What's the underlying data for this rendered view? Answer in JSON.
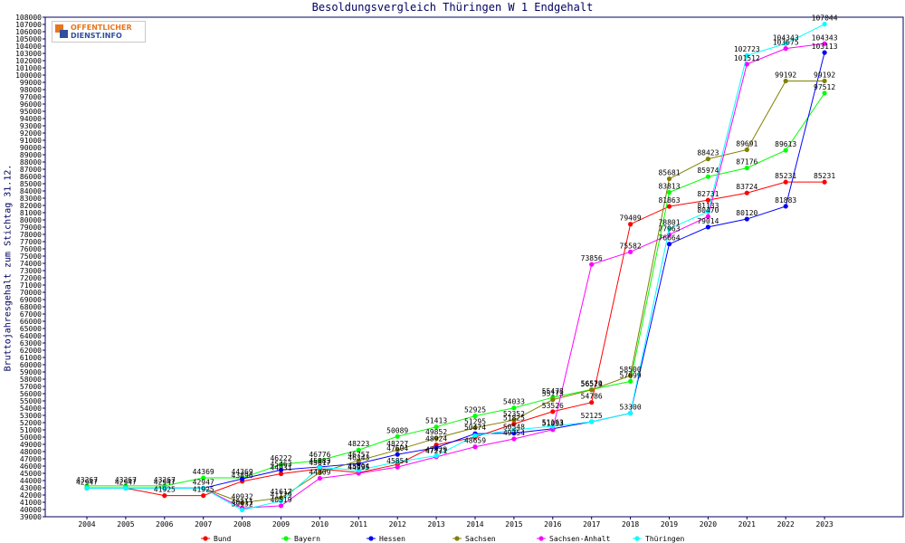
{
  "chart_data": {
    "type": "line",
    "title": "Besoldungsvergleich Thüringen W 1 Endgehalt",
    "ylabel": "Bruttojahresgehalt zum Stichtag 31.12.",
    "xlabel": "",
    "x": [
      "2004",
      "2005",
      "2006",
      "2007",
      "2008",
      "2009",
      "2010",
      "2011",
      "2012",
      "2013",
      "2014",
      "2015",
      "2016",
      "2017",
      "2018",
      "2019",
      "2020",
      "2021",
      "2022",
      "2023"
    ],
    "ylim": [
      39000,
      108000
    ],
    "ytick_step": 1000,
    "grid": false,
    "legend_position": "bottom",
    "series": [
      {
        "name": "Bund",
        "color": "#ff0000",
        "values": [
          42947,
          42947,
          41925,
          41925,
          43896,
          44931,
          45617,
          45094,
          46227,
          48924,
          49984,
          51825,
          53526,
          54786,
          79409,
          81863,
          82731,
          83724,
          85231,
          85231
        ]
      },
      {
        "name": "Bayern",
        "color": "#00ff00",
        "values": [
          43267,
          43267,
          43267,
          44369,
          44369,
          46222,
          46776,
          48223,
          50089,
          51413,
          52925,
          54033,
          55478,
          56579,
          57699,
          83813,
          85974,
          87176,
          89613,
          97512
        ]
      },
      {
        "name": "Hessen",
        "color": "#0000ff",
        "values": [
          42947,
          42947,
          42947,
          42947,
          44231,
          45463,
          45883,
          46343,
          47604,
          48553,
          50474,
          50548,
          51163,
          52125,
          53300,
          76664,
          79014,
          80120,
          81883,
          103113
        ]
      },
      {
        "name": "Sachsen",
        "color": "#808000",
        "values": [
          42947,
          42947,
          42947,
          42947,
          40932,
          41617,
          45093,
          46757,
          48227,
          49852,
          51295,
          52352,
          55173,
          56524,
          58500,
          85681,
          88423,
          89691,
          99192,
          99192
        ]
      },
      {
        "name": "Sachsen-Anhalt",
        "color": "#ff00ff",
        "values": [
          42947,
          42947,
          42947,
          42947,
          40211,
          40519,
          44309,
          44995,
          45854,
          47271,
          48659,
          49754,
          51033,
          73856,
          75582,
          77963,
          80470,
          101512,
          103675,
          104343
        ]
      },
      {
        "name": "Thüringen",
        "color": "#00ffff",
        "values": [
          42947,
          42947,
          42947,
          42947,
          39932,
          41179,
          45805,
          45434,
          46584,
          47429,
          50205,
          50994,
          51495,
          52125,
          53300,
          78801,
          81133,
          102723,
          104343,
          107044
        ]
      }
    ],
    "data_labels": [
      {
        "x": "2004",
        "y": 42947,
        "label": "42947"
      },
      {
        "x": "2004",
        "y": 43267,
        "label": "43267"
      },
      {
        "x": "2005",
        "y": 42947,
        "label": "42947"
      },
      {
        "x": "2005",
        "y": 43267,
        "label": "43267"
      },
      {
        "x": "2006",
        "y": 42947,
        "label": "42947"
      },
      {
        "x": "2006",
        "y": 43267,
        "label": "43267"
      },
      {
        "x": "2006",
        "y": 41925,
        "label": "41925"
      },
      {
        "x": "2007",
        "y": 44369,
        "label": "44369"
      },
      {
        "x": "2007",
        "y": 42947,
        "label": "42947"
      },
      {
        "x": "2007",
        "y": 41925,
        "label": "41925"
      },
      {
        "x": "2008",
        "y": 44369,
        "label": "44369"
      },
      {
        "x": "2008",
        "y": 43896,
        "label": "43896"
      },
      {
        "x": "2008",
        "y": 40932,
        "label": "40932"
      },
      {
        "x": "2008",
        "y": 40211,
        "label": "40211"
      },
      {
        "x": "2008",
        "y": 39932,
        "label": "39932"
      },
      {
        "x": "2009",
        "y": 46222,
        "label": "46222"
      },
      {
        "x": "2009",
        "y": 45463,
        "label": "45463"
      },
      {
        "x": "2009",
        "y": 44931,
        "label": "44931"
      },
      {
        "x": "2009",
        "y": 41617,
        "label": "41617"
      },
      {
        "x": "2009",
        "y": 41179,
        "label": "41179"
      },
      {
        "x": "2009",
        "y": 40519,
        "label": "40519"
      },
      {
        "x": "2010",
        "y": 46776,
        "label": "46776"
      },
      {
        "x": "2010",
        "y": 45883,
        "label": "45883"
      },
      {
        "x": "2010",
        "y": 45617,
        "label": "45617"
      },
      {
        "x": "2010",
        "y": 44309,
        "label": "44309"
      },
      {
        "x": "2011",
        "y": 48223,
        "label": "48223"
      },
      {
        "x": "2011",
        "y": 46757,
        "label": "46757"
      },
      {
        "x": "2011",
        "y": 46343,
        "label": "46343"
      },
      {
        "x": "2011",
        "y": 45094,
        "label": "45094"
      },
      {
        "x": "2011",
        "y": 44995,
        "label": "44995"
      },
      {
        "x": "2012",
        "y": 50089,
        "label": "50089"
      },
      {
        "x": "2012",
        "y": 48227,
        "label": "48227"
      },
      {
        "x": "2012",
        "y": 47604,
        "label": "47604"
      },
      {
        "x": "2012",
        "y": 45854,
        "label": "45854"
      },
      {
        "x": "2013",
        "y": 51413,
        "label": "51413"
      },
      {
        "x": "2013",
        "y": 49852,
        "label": "49852"
      },
      {
        "x": "2013",
        "y": 48924,
        "label": "48924"
      },
      {
        "x": "2013",
        "y": 47429,
        "label": "47429"
      },
      {
        "x": "2013",
        "y": 47271,
        "label": "47271"
      },
      {
        "x": "2014",
        "y": 52925,
        "label": "52925"
      },
      {
        "x": "2014",
        "y": 51295,
        "label": "51295"
      },
      {
        "x": "2014",
        "y": 50474,
        "label": "50474"
      },
      {
        "x": "2014",
        "y": 48659,
        "label": "48659"
      },
      {
        "x": "2015",
        "y": 54033,
        "label": "54033"
      },
      {
        "x": "2015",
        "y": 52352,
        "label": "52352"
      },
      {
        "x": "2015",
        "y": 51825,
        "label": "51825"
      },
      {
        "x": "2015",
        "y": 50548,
        "label": "50548"
      },
      {
        "x": "2015",
        "y": 49754,
        "label": "49754"
      },
      {
        "x": "2016",
        "y": 55478,
        "label": "55478"
      },
      {
        "x": "2016",
        "y": 55173,
        "label": "55173"
      },
      {
        "x": "2016",
        "y": 53526,
        "label": "53526"
      },
      {
        "x": "2016",
        "y": 51163,
        "label": "51163"
      },
      {
        "x": "2016",
        "y": 51033,
        "label": "51033"
      },
      {
        "x": "2017",
        "y": 73856,
        "label": "73856"
      },
      {
        "x": "2017",
        "y": 56579,
        "label": "56579"
      },
      {
        "x": "2017",
        "y": 56524,
        "label": "56524"
      },
      {
        "x": "2017",
        "y": 54786,
        "label": "54786"
      },
      {
        "x": "2017",
        "y": 52125,
        "label": "52125"
      },
      {
        "x": "2018",
        "y": 79409,
        "label": "79409"
      },
      {
        "x": "2018",
        "y": 75582,
        "label": "75582"
      },
      {
        "x": "2018",
        "y": 58500,
        "label": "58500"
      },
      {
        "x": "2018",
        "y": 57699,
        "label": "57699"
      },
      {
        "x": "2018",
        "y": 53300,
        "label": "53300"
      },
      {
        "x": "2019",
        "y": 85681,
        "label": "85681"
      },
      {
        "x": "2019",
        "y": 83813,
        "label": "83813"
      },
      {
        "x": "2019",
        "y": 81863,
        "label": "81863"
      },
      {
        "x": "2019",
        "y": 78801,
        "label": "78801"
      },
      {
        "x": "2019",
        "y": 77963,
        "label": "77963"
      },
      {
        "x": "2019",
        "y": 76664,
        "label": "76664"
      },
      {
        "x": "2020",
        "y": 88423,
        "label": "88423"
      },
      {
        "x": "2020",
        "y": 85974,
        "label": "85974"
      },
      {
        "x": "2020",
        "y": 82731,
        "label": "82731"
      },
      {
        "x": "2020",
        "y": 81133,
        "label": "81133"
      },
      {
        "x": "2020",
        "y": 80470,
        "label": "80470"
      },
      {
        "x": "2020",
        "y": 79014,
        "label": "79014"
      },
      {
        "x": "2021",
        "y": 102723,
        "label": "102723"
      },
      {
        "x": "2021",
        "y": 101512,
        "label": "101512"
      },
      {
        "x": "2021",
        "y": 89691,
        "label": "89691"
      },
      {
        "x": "2021",
        "y": 87176,
        "label": "87176"
      },
      {
        "x": "2021",
        "y": 83724,
        "label": "83724"
      },
      {
        "x": "2021",
        "y": 80120,
        "label": "80120"
      },
      {
        "x": "2022",
        "y": 104343,
        "label": "104343"
      },
      {
        "x": "2022",
        "y": 103675,
        "label": "103675"
      },
      {
        "x": "2022",
        "y": 99192,
        "label": "99192"
      },
      {
        "x": "2022",
        "y": 89613,
        "label": "89613"
      },
      {
        "x": "2022",
        "y": 85231,
        "label": "85231"
      },
      {
        "x": "2022",
        "y": 81883,
        "label": "81883"
      },
      {
        "x": "2023",
        "y": 107044,
        "label": "107044"
      },
      {
        "x": "2023",
        "y": 104343,
        "label": "104343"
      },
      {
        "x": "2023",
        "y": 103113,
        "label": "103113"
      },
      {
        "x": "2023",
        "y": 99192,
        "label": "99192"
      },
      {
        "x": "2023",
        "y": 97512,
        "label": "97512"
      },
      {
        "x": "2023",
        "y": 85231,
        "label": "85231"
      }
    ]
  },
  "logo": {
    "line1": "OFFENTLICHER",
    "line2": "DIENST.INFO"
  }
}
